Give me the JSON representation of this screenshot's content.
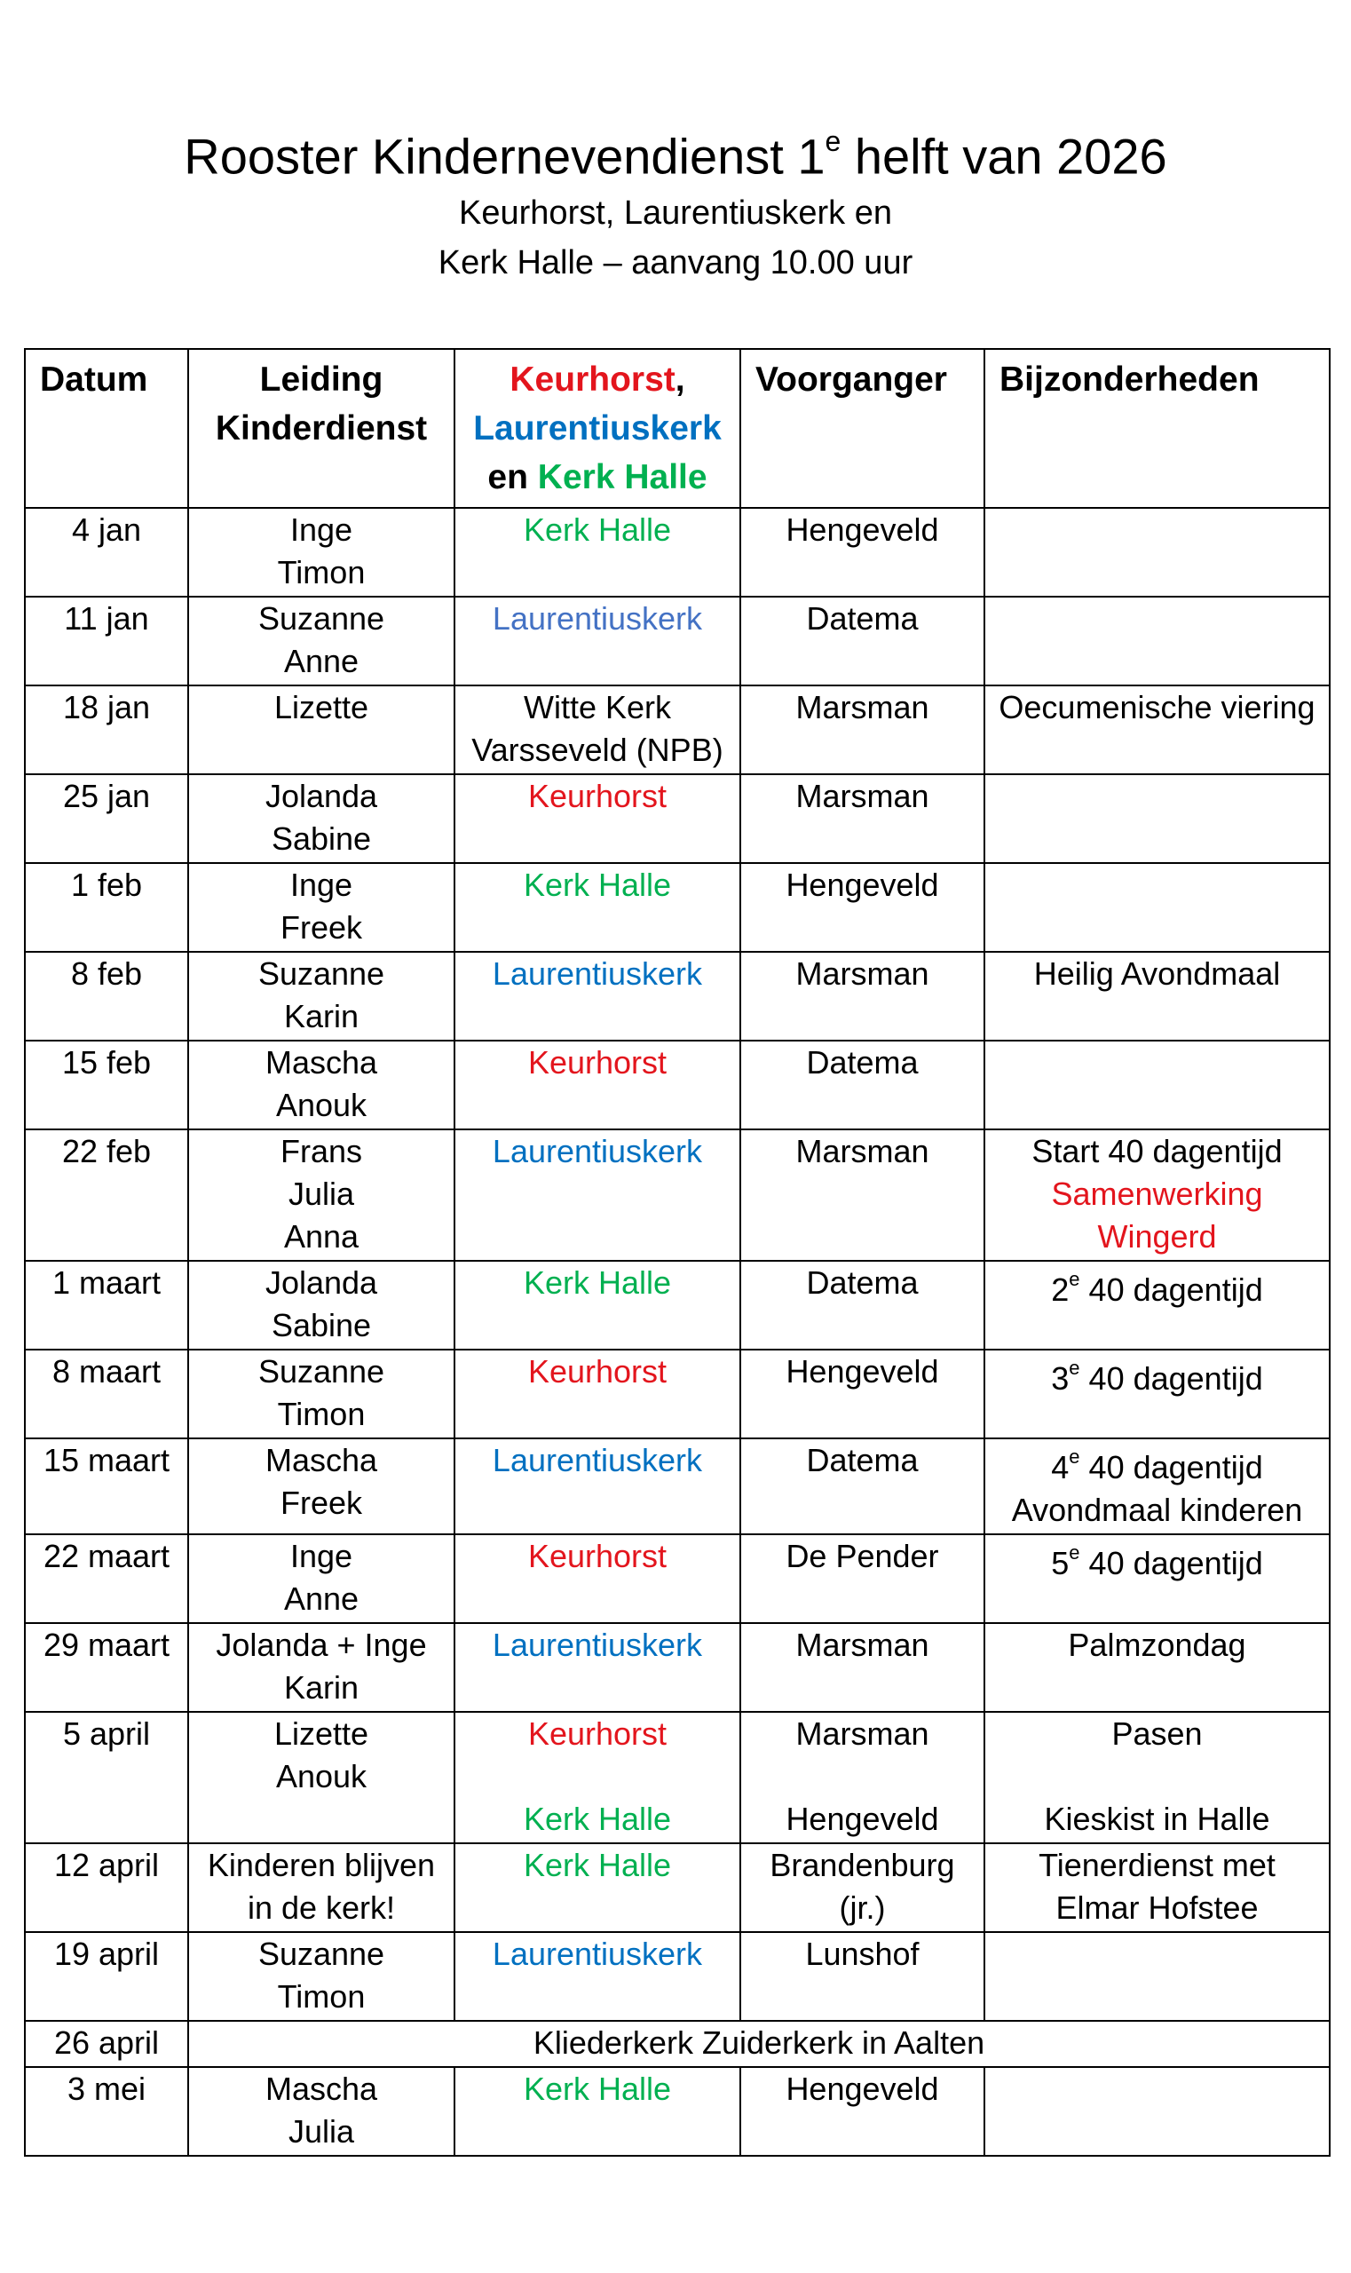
{
  "title": {
    "main": "Rooster Kindernevendienst 1",
    "sup": "e",
    "rest": " helft van 2026"
  },
  "subtitle": [
    "Keurhorst, Laurentiuskerk en",
    "Kerk Halle – aanvang 10.00 uur"
  ],
  "colors": {
    "keurhorst": "#e3151d",
    "laurentiuskerk": "#0070c0",
    "kerk_halle": "#00b050"
  },
  "headers": {
    "datum": "Datum",
    "leiding": [
      "Leiding",
      "Kinderdienst"
    ],
    "locaties": {
      "keurhorst": "Keurhorst",
      "comma": ",",
      "laurentiuskerk": "Laurentiuskerk",
      "en": "en ",
      "kerk_halle": "Kerk Halle"
    },
    "voorganger": "Voorganger",
    "bijzonderheden": "Bijzonderheden"
  },
  "rows": [
    {
      "datum": "4 jan",
      "leiding": [
        "Inge",
        "Timon"
      ],
      "locatie": "Kerk Halle",
      "voorganger": "Hengeveld"
    },
    {
      "datum": "11 jan",
      "leiding": [
        "Suzanne",
        "Anne"
      ],
      "locatie": "Laurentiuskerk",
      "voorganger": "Datema"
    },
    {
      "datum": "18 jan",
      "leiding": [
        "Lizette"
      ],
      "locatie": [
        "Witte Kerk",
        "Varsseveld (NPB)"
      ],
      "voorganger": "Marsman",
      "bijzonderheden": "Oecumenische viering"
    },
    {
      "datum": "25 jan",
      "leiding": [
        "Jolanda",
        "Sabine"
      ],
      "locatie": "Keurhorst",
      "voorganger": "Marsman"
    },
    {
      "datum": "1 feb",
      "leiding": [
        "Inge",
        "Freek"
      ],
      "locatie": "Kerk Halle",
      "voorganger": "Hengeveld"
    },
    {
      "datum": "8 feb",
      "leiding": [
        "Suzanne",
        "Karin"
      ],
      "locatie": "Laurentiuskerk",
      "voorganger": "Marsman",
      "bijzonderheden": "Heilig Avondmaal"
    },
    {
      "datum": "15 feb",
      "leiding": [
        "Mascha",
        "Anouk"
      ],
      "locatie": "Keurhorst",
      "voorganger": "Datema"
    },
    {
      "datum": "22 feb",
      "leiding": [
        "Frans",
        "Julia",
        "Anna"
      ],
      "locatie": "Laurentiuskerk",
      "voorganger": "Marsman",
      "bijzonderheden": [
        "Start 40 dagentijd",
        "Samenwerking",
        "Wingerd"
      ]
    },
    {
      "datum": "1 maart",
      "leiding": [
        "Jolanda",
        "Sabine"
      ],
      "locatie": "Kerk Halle",
      "voorganger": "Datema",
      "bijz_num": "2",
      "bijz_sup": "e",
      "bijz_rest": " 40 dagentijd"
    },
    {
      "datum": "8 maart",
      "leiding": [
        "Suzanne",
        "Timon"
      ],
      "locatie": "Keurhorst",
      "voorganger": "Hengeveld",
      "bijz_num": "3",
      "bijz_sup": "e",
      "bijz_rest": " 40 dagentijd"
    },
    {
      "datum": "15 maart",
      "leiding": [
        "Mascha",
        "Freek"
      ],
      "locatie": "Laurentiuskerk",
      "voorganger": "Datema",
      "bijz_num": "4",
      "bijz_sup": "e",
      "bijz_rest": " 40 dagentijd",
      "bijz_extra": "Avondmaal kinderen"
    },
    {
      "datum": "22 maart",
      "leiding": [
        "Inge",
        "Anne"
      ],
      "locatie": "Keurhorst",
      "voorganger": "De Pender",
      "bijz_num": "5",
      "bijz_sup": "e",
      "bijz_rest": " 40 dagentijd"
    },
    {
      "datum": "29 maart",
      "leiding": [
        "Jolanda + Inge",
        "Karin"
      ],
      "locatie": "Laurentiuskerk",
      "voorganger": "Marsman",
      "bijzonderheden": "Palmzondag"
    },
    {
      "datum": "5 april",
      "leiding": [
        "Lizette",
        "Anouk"
      ],
      "locatie": "Keurhorst",
      "locatie2": "Kerk Halle",
      "voorganger": "Marsman",
      "voorganger2": "Hengeveld",
      "bijzonderheden": "Pasen",
      "bijzonderheden2": "Kieskist in Halle"
    },
    {
      "datum": "12 april",
      "leiding": [
        "Kinderen blijven",
        "in de kerk!"
      ],
      "locatie": "Kerk Halle",
      "voorganger": [
        "Brandenburg",
        "(jr.)"
      ],
      "bijzonderheden": [
        "Tienerdienst met",
        "Elmar Hofstee"
      ]
    },
    {
      "datum": "19 april",
      "leiding": [
        "Suzanne",
        "Timon"
      ],
      "locatie": "Laurentiuskerk",
      "voorganger": "Lunshof"
    },
    {
      "datum": "26 april",
      "merged": "Kliederkerk Zuiderkerk in Aalten"
    },
    {
      "datum": "3 mei",
      "leiding": [
        "Mascha",
        "Julia"
      ],
      "locatie": "Kerk Halle",
      "voorganger": "Hengeveld"
    }
  ]
}
